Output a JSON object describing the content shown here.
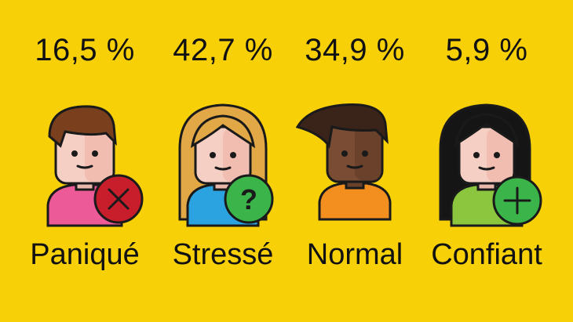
{
  "chart_data": {
    "type": "bar",
    "categories": [
      "Paniqué",
      "Stressé",
      "Normal",
      "Confiant"
    ],
    "values": [
      16.5,
      42.7,
      34.9,
      5.9
    ],
    "value_labels": [
      "16,5 %",
      "42,7 %",
      "34,9 %",
      "5,9 %"
    ],
    "title": "",
    "xlabel": "",
    "ylabel": ""
  },
  "figures": [
    {
      "label": "Paniqué",
      "value_label": "16,5 %",
      "hair": "#7a3f1d",
      "skin": "#f6cfc4",
      "shirt": "#ec5a98",
      "badge": "#c81e2b",
      "badge_icon": "x-icon"
    },
    {
      "label": "Stressé",
      "value_label": "42,7 %",
      "hair": "#e3a846",
      "skin": "#f6cfc4",
      "shirt": "#2aa3e0",
      "badge": "#3bb54a",
      "badge_icon": "question-icon"
    },
    {
      "label": "Normal",
      "value_label": "34,9 %",
      "hair": "#3a2318",
      "skin": "#7a4c33",
      "shirt": "#f28f1e",
      "badge": "",
      "badge_icon": ""
    },
    {
      "label": "Confiant",
      "value_label": "5,9 %",
      "hair": "#151515",
      "skin": "#f6cfc4",
      "shirt": "#8cc63f",
      "badge": "#3bb54a",
      "badge_icon": "plus-icon"
    }
  ],
  "colors": {
    "background": "#f7d008",
    "outline": "#1a1a1a"
  }
}
